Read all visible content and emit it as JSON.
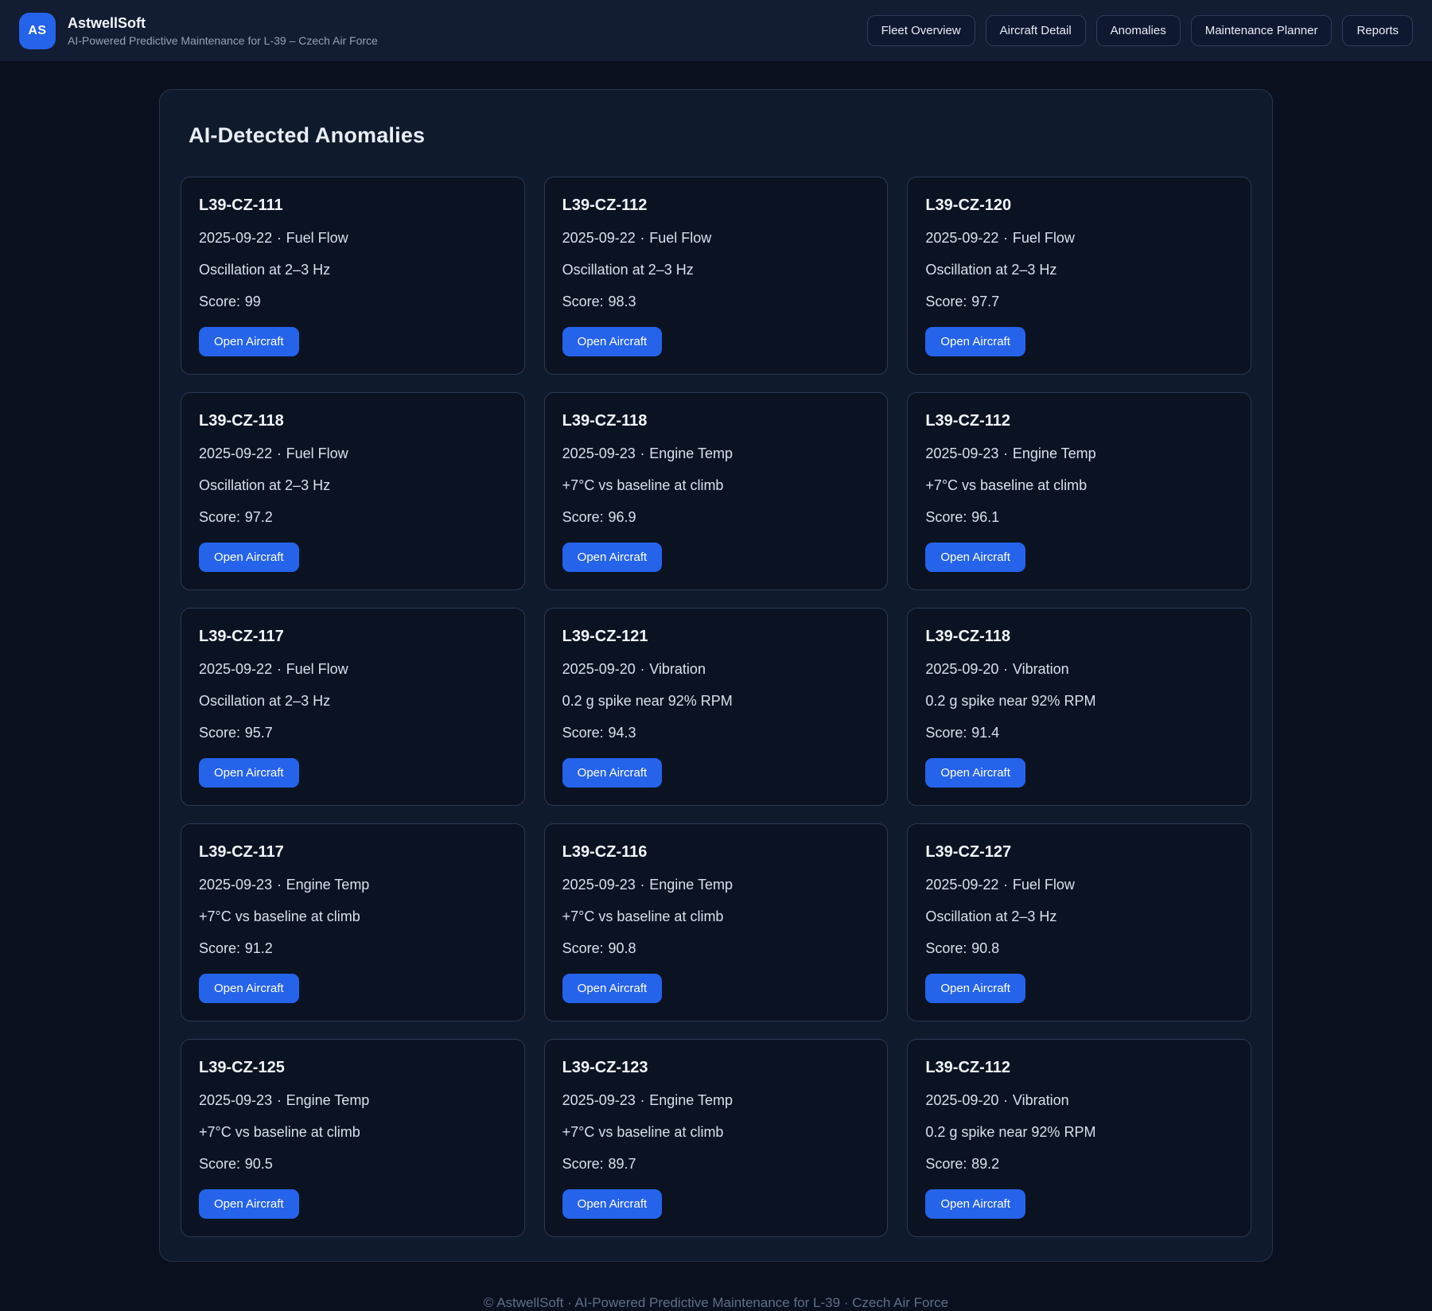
{
  "header": {
    "logo_text": "AS",
    "app_name": "AstwellSoft",
    "app_subtitle": "AI-Powered Predictive Maintenance for L-39 – Czech Air Force",
    "nav": [
      {
        "label": "Fleet Overview"
      },
      {
        "label": "Aircraft Detail"
      },
      {
        "label": "Anomalies"
      },
      {
        "label": "Maintenance Planner"
      },
      {
        "label": "Reports"
      }
    ]
  },
  "main": {
    "title": "AI-Detected Anomalies",
    "score_label": "Score:",
    "meta_separator": "·",
    "open_button_label": "Open Aircraft",
    "anomalies": [
      {
        "aircraft": "L39-CZ-111",
        "date": "2025-09-22",
        "type": "Fuel Flow",
        "description": "Oscillation at 2–3 Hz",
        "score": "99"
      },
      {
        "aircraft": "L39-CZ-112",
        "date": "2025-09-22",
        "type": "Fuel Flow",
        "description": "Oscillation at 2–3 Hz",
        "score": "98.3"
      },
      {
        "aircraft": "L39-CZ-120",
        "date": "2025-09-22",
        "type": "Fuel Flow",
        "description": "Oscillation at 2–3 Hz",
        "score": "97.7"
      },
      {
        "aircraft": "L39-CZ-118",
        "date": "2025-09-22",
        "type": "Fuel Flow",
        "description": "Oscillation at 2–3 Hz",
        "score": "97.2"
      },
      {
        "aircraft": "L39-CZ-118",
        "date": "2025-09-23",
        "type": "Engine Temp",
        "description": "+7°C vs baseline at climb",
        "score": "96.9"
      },
      {
        "aircraft": "L39-CZ-112",
        "date": "2025-09-23",
        "type": "Engine Temp",
        "description": "+7°C vs baseline at climb",
        "score": "96.1"
      },
      {
        "aircraft": "L39-CZ-117",
        "date": "2025-09-22",
        "type": "Fuel Flow",
        "description": "Oscillation at 2–3 Hz",
        "score": "95.7"
      },
      {
        "aircraft": "L39-CZ-121",
        "date": "2025-09-20",
        "type": "Vibration",
        "description": "0.2 g spike near 92% RPM",
        "score": "94.3"
      },
      {
        "aircraft": "L39-CZ-118",
        "date": "2025-09-20",
        "type": "Vibration",
        "description": "0.2 g spike near 92% RPM",
        "score": "91.4"
      },
      {
        "aircraft": "L39-CZ-117",
        "date": "2025-09-23",
        "type": "Engine Temp",
        "description": "+7°C vs baseline at climb",
        "score": "91.2"
      },
      {
        "aircraft": "L39-CZ-116",
        "date": "2025-09-23",
        "type": "Engine Temp",
        "description": "+7°C vs baseline at climb",
        "score": "90.8"
      },
      {
        "aircraft": "L39-CZ-127",
        "date": "2025-09-22",
        "type": "Fuel Flow",
        "description": "Oscillation at 2–3 Hz",
        "score": "90.8"
      },
      {
        "aircraft": "L39-CZ-125",
        "date": "2025-09-23",
        "type": "Engine Temp",
        "description": "+7°C vs baseline at climb",
        "score": "90.5"
      },
      {
        "aircraft": "L39-CZ-123",
        "date": "2025-09-23",
        "type": "Engine Temp",
        "description": "+7°C vs baseline at climb",
        "score": "89.7"
      },
      {
        "aircraft": "L39-CZ-112",
        "date": "2025-09-20",
        "type": "Vibration",
        "description": "0.2 g spike near 92% RPM",
        "score": "89.2"
      }
    ]
  },
  "footer": {
    "text": "© AstwellSoft · AI-Powered Predictive Maintenance for L-39 · Czech Air Force"
  },
  "colors": {
    "accent_blue": "#2563eb",
    "page_bg": "#0b101f",
    "header_bg": "#121c32",
    "panel_bg": "#101a2d",
    "card_bg": "#0b1221",
    "card_border": "#2a3954",
    "text_primary": "#f3f6fb",
    "text_body": "#d9e0ec",
    "footer_text": "#5f6e88"
  }
}
